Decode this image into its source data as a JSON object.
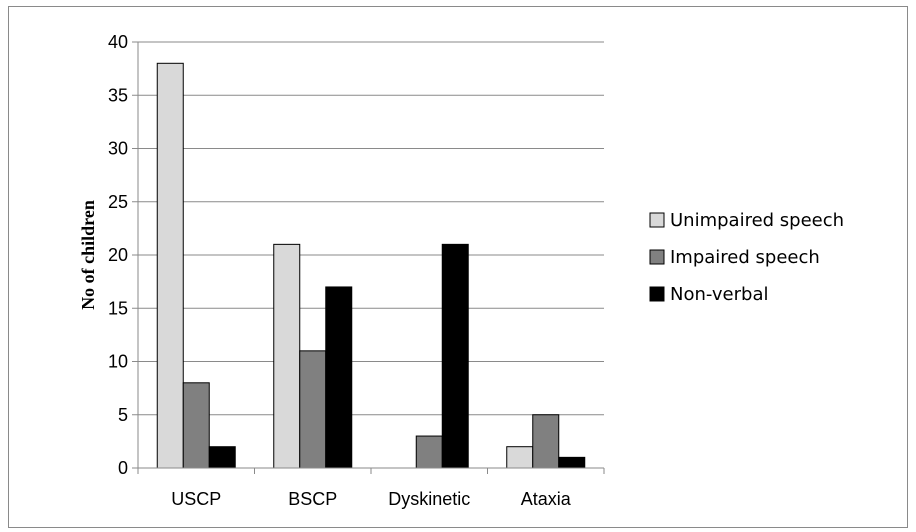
{
  "chart_data": {
    "type": "bar",
    "categories": [
      "USCP",
      "BSCP",
      "Dyskinetic",
      "Ataxia"
    ],
    "series": [
      {
        "name": "Unimpaired speech",
        "values": [
          38,
          21,
          0,
          2
        ],
        "color": "#d9d9d9"
      },
      {
        "name": "Impaired speech",
        "values": [
          8,
          11,
          3,
          5
        ],
        "color": "#808080"
      },
      {
        "name": "Non-verbal",
        "values": [
          2,
          17,
          21,
          1
        ],
        "color": "#000000"
      }
    ],
    "title": "",
    "xlabel": "",
    "ylabel": "No of children",
    "ylim": [
      0,
      40
    ],
    "yticks": [
      "0",
      "5",
      "10",
      "15",
      "20",
      "25",
      "30",
      "35",
      "40"
    ],
    "grid": true,
    "legend_position": "right"
  }
}
